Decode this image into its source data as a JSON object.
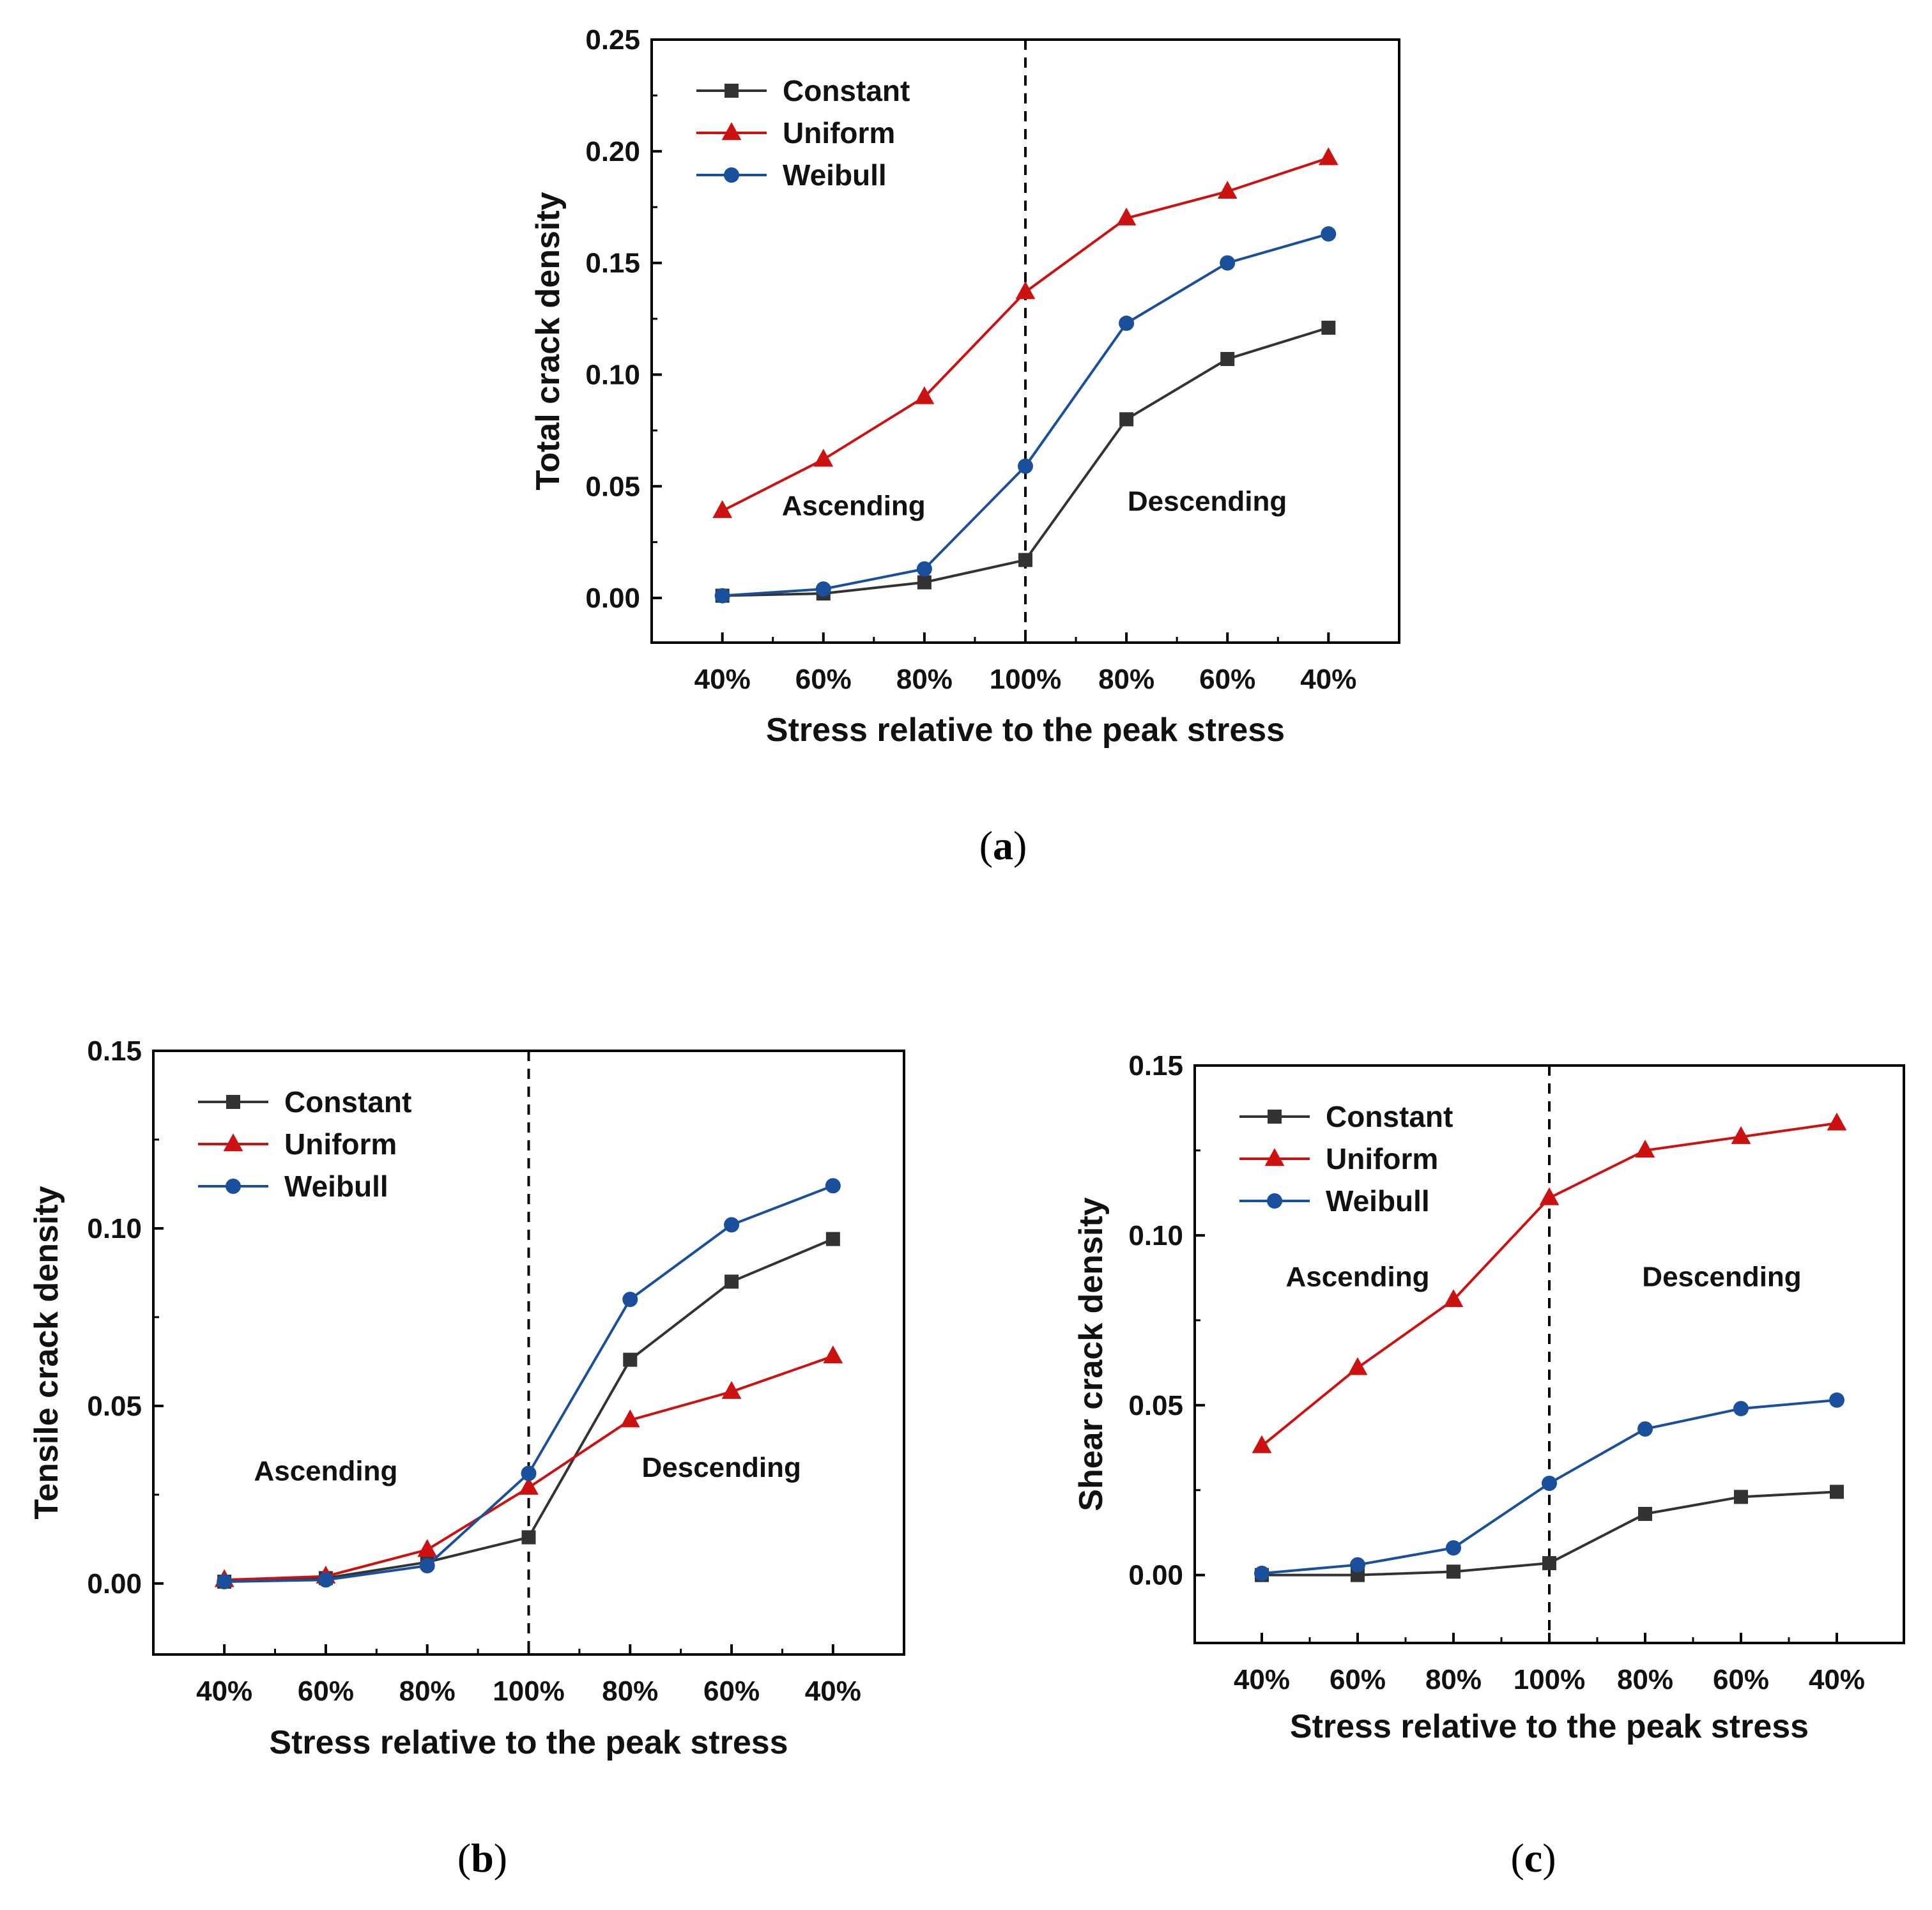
{
  "colors": {
    "Constant": "#333333",
    "Uniform": "#cc1111",
    "Weibull": "#1a4f9c",
    "axis": "#000000"
  },
  "chart_data": [
    {
      "id": "a",
      "type": "line",
      "caption_letter": "a",
      "xlabel": "Stress relative to the peak stress",
      "ylabel": "Total crack density",
      "categories": [
        "40%",
        "60%",
        "80%",
        "100%",
        "80%",
        "60%",
        "40%"
      ],
      "ylim": [
        -0.02,
        0.25
      ],
      "yticks": [
        0.0,
        0.05,
        0.1,
        0.15,
        0.2,
        0.25
      ],
      "ytick_labels": [
        "0.00",
        "0.05",
        "0.10",
        "0.15",
        "0.20",
        "0.25"
      ],
      "peak_index": 3,
      "legend_position": "top-left",
      "regions": [
        {
          "text": "Ascending",
          "x": 1.3,
          "y": 0.037
        },
        {
          "text": "Descending",
          "x": 4.8,
          "y": 0.039
        }
      ],
      "series": [
        {
          "name": "Constant",
          "marker": "square",
          "values": [
            0.001,
            0.002,
            0.007,
            0.017,
            0.08,
            0.107,
            0.121
          ]
        },
        {
          "name": "Uniform",
          "marker": "triangle",
          "values": [
            0.039,
            0.062,
            0.09,
            0.137,
            0.17,
            0.182,
            0.197
          ]
        },
        {
          "name": "Weibull",
          "marker": "circle",
          "values": [
            0.001,
            0.004,
            0.013,
            0.059,
            0.123,
            0.15,
            0.163
          ]
        }
      ]
    },
    {
      "id": "b",
      "type": "line",
      "caption_letter": "b",
      "xlabel": "Stress relative to the peak stress",
      "ylabel": "Tensile crack density",
      "categories": [
        "40%",
        "60%",
        "80%",
        "100%",
        "80%",
        "60%",
        "40%"
      ],
      "ylim": [
        -0.02,
        0.15
      ],
      "yticks": [
        0.0,
        0.05,
        0.1,
        0.15
      ],
      "ytick_labels": [
        "0.00",
        "0.05",
        "0.10",
        "0.15"
      ],
      "peak_index": 3,
      "legend_position": "top-left",
      "regions": [
        {
          "text": "Ascending",
          "x": 1.0,
          "y": 0.029
        },
        {
          "text": "Descending",
          "x": 4.9,
          "y": 0.03
        }
      ],
      "series": [
        {
          "name": "Constant",
          "marker": "square",
          "values": [
            0.0005,
            0.0015,
            0.006,
            0.013,
            0.063,
            0.085,
            0.097
          ]
        },
        {
          "name": "Uniform",
          "marker": "triangle",
          "values": [
            0.001,
            0.002,
            0.0095,
            0.027,
            0.046,
            0.054,
            0.064
          ]
        },
        {
          "name": "Weibull",
          "marker": "circle",
          "values": [
            0.0005,
            0.001,
            0.005,
            0.031,
            0.08,
            0.101,
            0.112
          ]
        }
      ]
    },
    {
      "id": "c",
      "type": "line",
      "caption_letter": "c",
      "xlabel": "Stress relative to the peak stress",
      "ylabel": "Shear crack density",
      "categories": [
        "40%",
        "60%",
        "80%",
        "100%",
        "80%",
        "60%",
        "40%"
      ],
      "ylim": [
        -0.02,
        0.15
      ],
      "yticks": [
        0.0,
        0.05,
        0.1,
        0.15
      ],
      "ytick_labels": [
        "0.00",
        "0.05",
        "0.10",
        "0.15"
      ],
      "peak_index": 3,
      "legend_position": "top-left",
      "regions": [
        {
          "text": "Ascending",
          "x": 1.0,
          "y": 0.085
        },
        {
          "text": "Descending",
          "x": 4.8,
          "y": 0.085
        }
      ],
      "series": [
        {
          "name": "Constant",
          "marker": "square",
          "values": [
            0.0,
            0.0,
            0.001,
            0.0035,
            0.018,
            0.023,
            0.0245
          ]
        },
        {
          "name": "Uniform",
          "marker": "triangle",
          "values": [
            0.038,
            0.061,
            0.081,
            0.111,
            0.125,
            0.129,
            0.133
          ]
        },
        {
          "name": "Weibull",
          "marker": "circle",
          "values": [
            0.0005,
            0.003,
            0.008,
            0.027,
            0.043,
            0.049,
            0.0515
          ]
        }
      ]
    }
  ]
}
